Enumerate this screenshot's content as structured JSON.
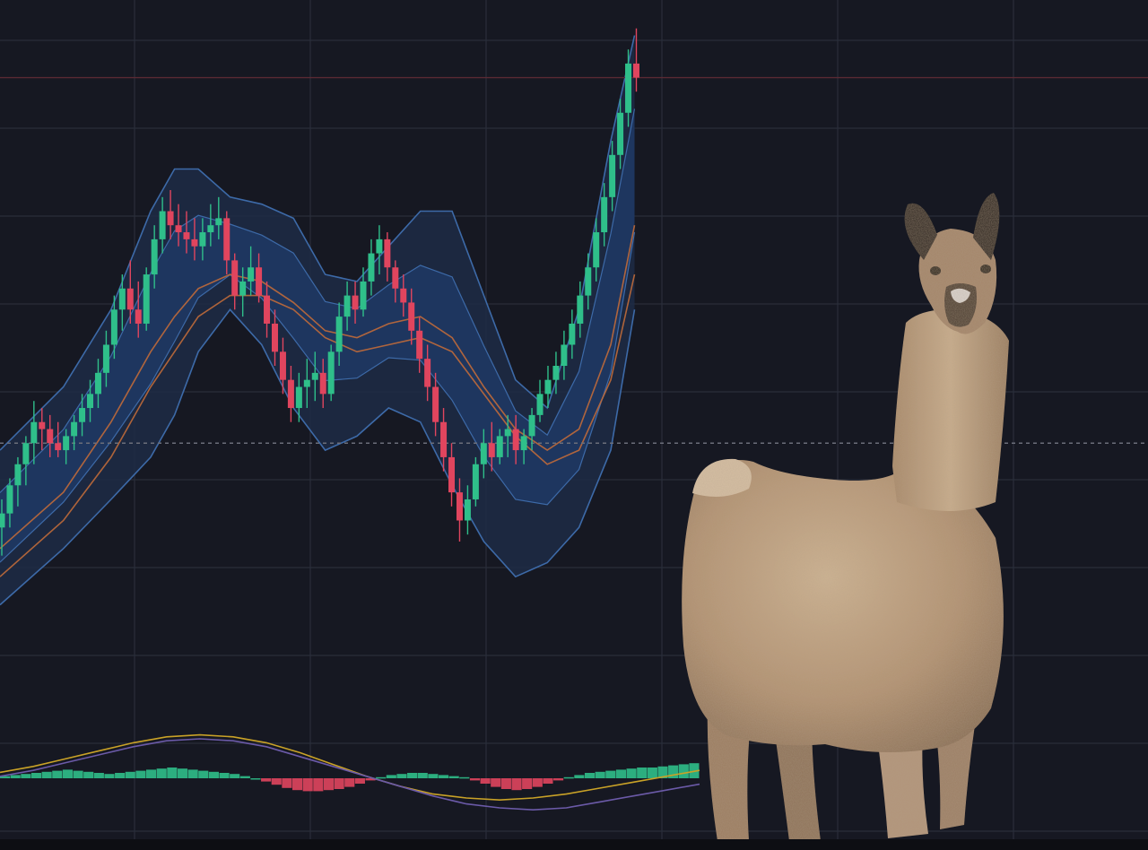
{
  "colors": {
    "background": "#161822",
    "grid": "#2a2d3a",
    "up_candle": "#2fbf8a",
    "down_candle": "#e0455e",
    "band_outer_fill": "#1d2b45",
    "band_inner_fill": "#1f3a66",
    "band_line": "#3d6aa8",
    "ma_line": "#c06a3a",
    "macd_line": "#c9a227",
    "signal_line": "#6b5aa8",
    "llama_fur": "#b79b7c"
  },
  "chart_data": [
    {
      "type": "candlestick",
      "title": "",
      "xlabel": "",
      "ylabel": "",
      "grid": true,
      "ylim": [
        0,
        100
      ],
      "xlim": [
        0,
        110
      ],
      "dashed_reference_level": 39,
      "last_price_level": 91,
      "candles": [
        {
          "o": 27,
          "h": 31,
          "l": 23,
          "c": 29
        },
        {
          "o": 29,
          "h": 34,
          "l": 27,
          "c": 33
        },
        {
          "o": 33,
          "h": 37,
          "l": 30,
          "c": 36
        },
        {
          "o": 36,
          "h": 40,
          "l": 33,
          "c": 39
        },
        {
          "o": 39,
          "h": 45,
          "l": 36,
          "c": 42
        },
        {
          "o": 42,
          "h": 44,
          "l": 38,
          "c": 41
        },
        {
          "o": 41,
          "h": 43,
          "l": 37,
          "c": 39
        },
        {
          "o": 39,
          "h": 42,
          "l": 37,
          "c": 38
        },
        {
          "o": 38,
          "h": 41,
          "l": 36,
          "c": 40
        },
        {
          "o": 40,
          "h": 43,
          "l": 38,
          "c": 42
        },
        {
          "o": 42,
          "h": 46,
          "l": 40,
          "c": 44
        },
        {
          "o": 44,
          "h": 48,
          "l": 42,
          "c": 46
        },
        {
          "o": 46,
          "h": 51,
          "l": 44,
          "c": 49
        },
        {
          "o": 49,
          "h": 55,
          "l": 47,
          "c": 53
        },
        {
          "o": 53,
          "h": 60,
          "l": 51,
          "c": 58
        },
        {
          "o": 58,
          "h": 63,
          "l": 55,
          "c": 61
        },
        {
          "o": 61,
          "h": 65,
          "l": 56,
          "c": 58
        },
        {
          "o": 58,
          "h": 62,
          "l": 54,
          "c": 56
        },
        {
          "o": 56,
          "h": 64,
          "l": 55,
          "c": 63
        },
        {
          "o": 63,
          "h": 70,
          "l": 61,
          "c": 68
        },
        {
          "o": 68,
          "h": 74,
          "l": 66,
          "c": 72
        },
        {
          "o": 72,
          "h": 75,
          "l": 68,
          "c": 70
        },
        {
          "o": 70,
          "h": 73,
          "l": 67,
          "c": 69
        },
        {
          "o": 69,
          "h": 72,
          "l": 66,
          "c": 68
        },
        {
          "o": 68,
          "h": 71,
          "l": 65,
          "c": 67
        },
        {
          "o": 67,
          "h": 71,
          "l": 65,
          "c": 69
        },
        {
          "o": 69,
          "h": 73,
          "l": 67,
          "c": 70
        },
        {
          "o": 70,
          "h": 74,
          "l": 68,
          "c": 71
        },
        {
          "o": 71,
          "h": 72,
          "l": 63,
          "c": 65
        },
        {
          "o": 65,
          "h": 66,
          "l": 58,
          "c": 60
        },
        {
          "o": 60,
          "h": 64,
          "l": 57,
          "c": 62
        },
        {
          "o": 62,
          "h": 67,
          "l": 60,
          "c": 64
        },
        {
          "o": 64,
          "h": 66,
          "l": 59,
          "c": 60
        },
        {
          "o": 60,
          "h": 62,
          "l": 54,
          "c": 56
        },
        {
          "o": 56,
          "h": 58,
          "l": 50,
          "c": 52
        },
        {
          "o": 52,
          "h": 54,
          "l": 46,
          "c": 48
        },
        {
          "o": 48,
          "h": 50,
          "l": 42,
          "c": 44
        },
        {
          "o": 44,
          "h": 49,
          "l": 42,
          "c": 47
        },
        {
          "o": 47,
          "h": 51,
          "l": 44,
          "c": 48
        },
        {
          "o": 48,
          "h": 52,
          "l": 45,
          "c": 49
        },
        {
          "o": 49,
          "h": 51,
          "l": 44,
          "c": 46
        },
        {
          "o": 46,
          "h": 53,
          "l": 45,
          "c": 52
        },
        {
          "o": 52,
          "h": 59,
          "l": 50,
          "c": 57
        },
        {
          "o": 57,
          "h": 62,
          "l": 55,
          "c": 60
        },
        {
          "o": 60,
          "h": 62,
          "l": 56,
          "c": 58
        },
        {
          "o": 58,
          "h": 64,
          "l": 57,
          "c": 62
        },
        {
          "o": 62,
          "h": 68,
          "l": 60,
          "c": 66
        },
        {
          "o": 66,
          "h": 70,
          "l": 63,
          "c": 68
        },
        {
          "o": 68,
          "h": 69,
          "l": 62,
          "c": 64
        },
        {
          "o": 64,
          "h": 65,
          "l": 59,
          "c": 61
        },
        {
          "o": 61,
          "h": 63,
          "l": 57,
          "c": 59
        },
        {
          "o": 59,
          "h": 61,
          "l": 53,
          "c": 55
        },
        {
          "o": 55,
          "h": 57,
          "l": 49,
          "c": 51
        },
        {
          "o": 51,
          "h": 53,
          "l": 45,
          "c": 47
        },
        {
          "o": 47,
          "h": 49,
          "l": 40,
          "c": 42
        },
        {
          "o": 42,
          "h": 44,
          "l": 35,
          "c": 37
        },
        {
          "o": 37,
          "h": 39,
          "l": 30,
          "c": 32
        },
        {
          "o": 32,
          "h": 34,
          "l": 25,
          "c": 28
        },
        {
          "o": 28,
          "h": 33,
          "l": 26,
          "c": 31
        },
        {
          "o": 31,
          "h": 37,
          "l": 30,
          "c": 36
        },
        {
          "o": 36,
          "h": 41,
          "l": 34,
          "c": 39
        },
        {
          "o": 39,
          "h": 42,
          "l": 35,
          "c": 37
        },
        {
          "o": 37,
          "h": 41,
          "l": 36,
          "c": 40
        },
        {
          "o": 40,
          "h": 43,
          "l": 37,
          "c": 41
        },
        {
          "o": 41,
          "h": 43,
          "l": 36,
          "c": 38
        },
        {
          "o": 38,
          "h": 41,
          "l": 36,
          "c": 40
        },
        {
          "o": 40,
          "h": 44,
          "l": 38,
          "c": 43
        },
        {
          "o": 43,
          "h": 48,
          "l": 42,
          "c": 46
        },
        {
          "o": 46,
          "h": 50,
          "l": 44,
          "c": 48
        },
        {
          "o": 48,
          "h": 52,
          "l": 46,
          "c": 50
        },
        {
          "o": 50,
          "h": 55,
          "l": 48,
          "c": 53
        },
        {
          "o": 53,
          "h": 58,
          "l": 51,
          "c": 56
        },
        {
          "o": 56,
          "h": 62,
          "l": 54,
          "c": 60
        },
        {
          "o": 60,
          "h": 66,
          "l": 58,
          "c": 64
        },
        {
          "o": 64,
          "h": 71,
          "l": 62,
          "c": 69
        },
        {
          "o": 69,
          "h": 76,
          "l": 67,
          "c": 74
        },
        {
          "o": 74,
          "h": 82,
          "l": 72,
          "c": 80
        },
        {
          "o": 80,
          "h": 88,
          "l": 78,
          "c": 86
        },
        {
          "o": 86,
          "h": 95,
          "l": 84,
          "c": 93
        },
        {
          "o": 93,
          "h": 98,
          "l": 89,
          "c": 91
        }
      ],
      "bollinger": {
        "x": [
          0,
          8,
          14,
          19,
          22,
          25,
          29,
          33,
          37,
          41,
          45,
          49,
          53,
          57,
          61,
          65,
          69,
          73,
          77,
          80
        ],
        "upper": [
          38,
          47,
          58,
          72,
          78,
          78,
          74,
          73,
          71,
          63,
          62,
          67,
          72,
          72,
          60,
          48,
          44,
          58,
          82,
          97
        ],
        "mid": [
          27,
          36,
          46,
          56,
          62,
          66,
          67,
          65,
          62,
          56,
          55,
          57,
          58,
          55,
          47,
          40,
          37,
          42,
          58,
          78
        ],
        "lower": [
          16,
          24,
          31,
          37,
          43,
          52,
          58,
          53,
          44,
          38,
          40,
          44,
          42,
          33,
          25,
          20,
          22,
          27,
          38,
          58
        ]
      },
      "moving_averages": [
        {
          "x": [
            0,
            8,
            14,
            19,
            22,
            25,
            29,
            33,
            37,
            41,
            45,
            49,
            53,
            57,
            61,
            65,
            69,
            73,
            77,
            80
          ],
          "y": [
            24,
            32,
            42,
            52,
            57,
            61,
            63,
            62,
            59,
            55,
            54,
            56,
            57,
            54,
            47,
            41,
            38,
            41,
            53,
            70
          ]
        },
        {
          "x": [
            0,
            8,
            14,
            19,
            22,
            25,
            29,
            33,
            37,
            41,
            45,
            49,
            53,
            57,
            61,
            65,
            69,
            73,
            77,
            80
          ],
          "y": [
            20,
            28,
            37,
            47,
            52,
            57,
            60,
            60,
            58,
            54,
            52,
            53,
            54,
            52,
            46,
            40,
            36,
            38,
            48,
            63
          ]
        }
      ]
    },
    {
      "type": "macd",
      "title": "",
      "histogram": [
        0.2,
        0.3,
        0.4,
        0.5,
        0.6,
        0.7,
        0.8,
        0.7,
        0.6,
        0.5,
        0.4,
        0.5,
        0.6,
        0.7,
        0.8,
        0.9,
        1.0,
        0.9,
        0.8,
        0.7,
        0.6,
        0.5,
        0.4,
        0.2,
        0.0,
        -0.3,
        -0.6,
        -0.9,
        -1.1,
        -1.2,
        -1.2,
        -1.1,
        -1.0,
        -0.8,
        -0.5,
        -0.2,
        0.1,
        0.3,
        0.4,
        0.5,
        0.5,
        0.4,
        0.3,
        0.2,
        0.1,
        -0.2,
        -0.5,
        -0.8,
        -1.0,
        -1.1,
        -1.0,
        -0.8,
        -0.5,
        -0.2,
        0.1,
        0.3,
        0.5,
        0.6,
        0.7,
        0.8,
        0.9,
        1.0,
        1.0,
        1.1,
        1.2,
        1.3,
        1.4
      ],
      "macd_line": [
        0.3,
        0.6,
        1.0,
        1.4,
        1.8,
        2.1,
        2.2,
        2.1,
        1.8,
        1.3,
        0.7,
        0.1,
        -0.4,
        -0.8,
        -1.0,
        -1.1,
        -1.0,
        -0.8,
        -0.5,
        -0.2,
        0.1,
        0.4
      ],
      "signal_line": [
        0.1,
        0.4,
        0.8,
        1.2,
        1.6,
        1.9,
        2.0,
        1.9,
        1.6,
        1.1,
        0.6,
        0.1,
        -0.4,
        -0.9,
        -1.3,
        -1.5,
        -1.6,
        -1.5,
        -1.2,
        -0.9,
        -0.6,
        -0.3
      ]
    }
  ]
}
